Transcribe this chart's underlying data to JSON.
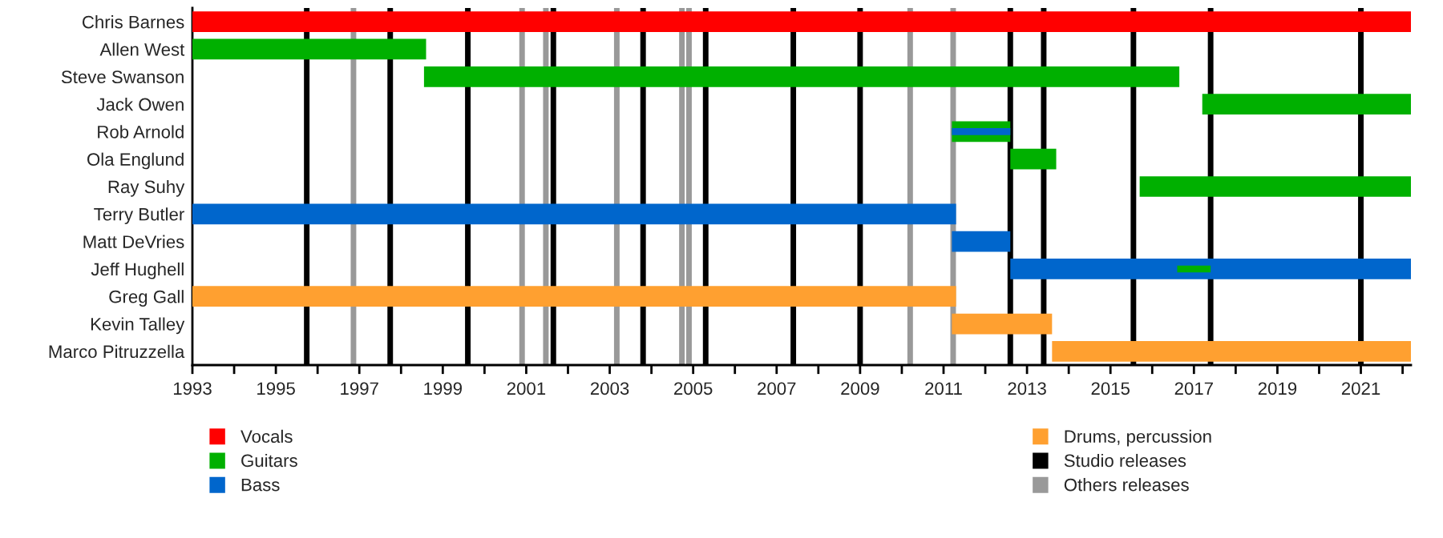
{
  "chart_data": {
    "type": "bar",
    "orientation": "horizontal",
    "categories": [
      "Chris Barnes",
      "Allen West",
      "Steve Swanson",
      "Jack Owen",
      "Rob Arnold",
      "Ola Englund",
      "Ray Suhy",
      "Terry Butler",
      "Matt DeVries",
      "Jeff Hughell",
      "Greg Gall",
      "Kevin Talley",
      "Marco Pitruzzella"
    ],
    "series": [
      {
        "name": "Vocals",
        "color": "#ff0000",
        "base": [
          1993,
          null,
          null,
          null,
          null,
          null,
          null,
          null,
          null,
          null,
          null,
          null,
          null
        ],
        "values": [
          29.2,
          null,
          null,
          null,
          null,
          null,
          null,
          null,
          null,
          null,
          null,
          null,
          null
        ]
      },
      {
        "name": "Guitars",
        "color": "#00b000",
        "base": [
          null,
          1993,
          1998.55,
          2017.2,
          2011.2,
          2012.6,
          2015.7,
          null,
          null,
          2016.6,
          null,
          null,
          null
        ],
        "values": [
          null,
          5.6,
          18.1,
          5.0,
          1.4,
          1.1,
          6.5,
          null,
          null,
          0.8,
          null,
          null,
          null
        ]
      },
      {
        "name": "Bass",
        "color": "#0066cc",
        "base": [
          null,
          null,
          null,
          null,
          2011.2,
          null,
          null,
          1993,
          2011.2,
          2012.6,
          null,
          null,
          null
        ],
        "values": [
          null,
          null,
          null,
          null,
          1.4,
          null,
          null,
          18.3,
          1.4,
          9.6,
          null,
          null,
          null
        ]
      },
      {
        "name": "Drums, percussion",
        "color": "#ffa030",
        "base": [
          null,
          null,
          null,
          null,
          null,
          null,
          null,
          null,
          null,
          null,
          1993,
          2011.2,
          2013.6
        ],
        "values": [
          null,
          null,
          null,
          null,
          null,
          null,
          null,
          null,
          null,
          null,
          18.3,
          2.4,
          8.6
        ]
      }
    ],
    "ref_lines": [
      {
        "axis": "x",
        "value": 1995.74,
        "label": "Studio releases",
        "color": "#000000"
      },
      {
        "axis": "x",
        "value": 1997.74,
        "color": "#000000"
      },
      {
        "axis": "x",
        "value": 1999.6,
        "color": "#000000"
      },
      {
        "axis": "x",
        "value": 2001.65,
        "color": "#000000"
      },
      {
        "axis": "x",
        "value": 2003.8,
        "color": "#000000"
      },
      {
        "axis": "x",
        "value": 2005.3,
        "color": "#000000"
      },
      {
        "axis": "x",
        "value": 2007.4,
        "color": "#000000"
      },
      {
        "axis": "x",
        "value": 2009.0,
        "color": "#000000"
      },
      {
        "axis": "x",
        "value": 2012.6,
        "color": "#000000"
      },
      {
        "axis": "x",
        "value": 2013.4,
        "color": "#000000"
      },
      {
        "axis": "x",
        "value": 2015.55,
        "color": "#000000"
      },
      {
        "axis": "x",
        "value": 2017.4,
        "color": "#000000"
      },
      {
        "axis": "x",
        "value": 2021.0,
        "color": "#000000"
      },
      {
        "axis": "x",
        "value": 1996.86,
        "label": "Others releases",
        "color": "#999999"
      },
      {
        "axis": "x",
        "value": 2000.9,
        "color": "#999999"
      },
      {
        "axis": "x",
        "value": 2001.47,
        "color": "#999999"
      },
      {
        "axis": "x",
        "value": 2003.17,
        "color": "#999999"
      },
      {
        "axis": "x",
        "value": 2004.73,
        "color": "#999999"
      },
      {
        "axis": "x",
        "value": 2004.9,
        "color": "#999999"
      },
      {
        "axis": "x",
        "value": 2010.2,
        "color": "#999999"
      },
      {
        "axis": "x",
        "value": 2011.23,
        "color": "#999999"
      }
    ],
    "xlim": [
      1993,
      2022.2
    ],
    "xticks": [
      1993,
      {
        "value": 1994,
        "label": null
      },
      1995,
      {
        "value": 1996,
        "label": null
      },
      1997,
      {
        "value": 1998,
        "label": null
      },
      1999,
      {
        "value": 2000,
        "label": null
      },
      2001,
      {
        "value": 2002,
        "label": null
      },
      2003,
      {
        "value": 2004,
        "label": null
      },
      2005,
      {
        "value": 2006,
        "label": null
      },
      2007,
      {
        "value": 2008,
        "label": null
      },
      2009,
      {
        "value": 2010,
        "label": null
      },
      2011,
      {
        "value": 2012,
        "label": null
      },
      2013,
      {
        "value": 2014,
        "label": null
      },
      2015,
      {
        "value": 2016,
        "label": null
      },
      2017,
      {
        "value": 2018,
        "label": null
      },
      2019,
      {
        "value": 2020,
        "label": null
      },
      2021,
      {
        "value": 2022,
        "label": null
      }
    ],
    "legend": "bottom",
    "grid": false
  }
}
